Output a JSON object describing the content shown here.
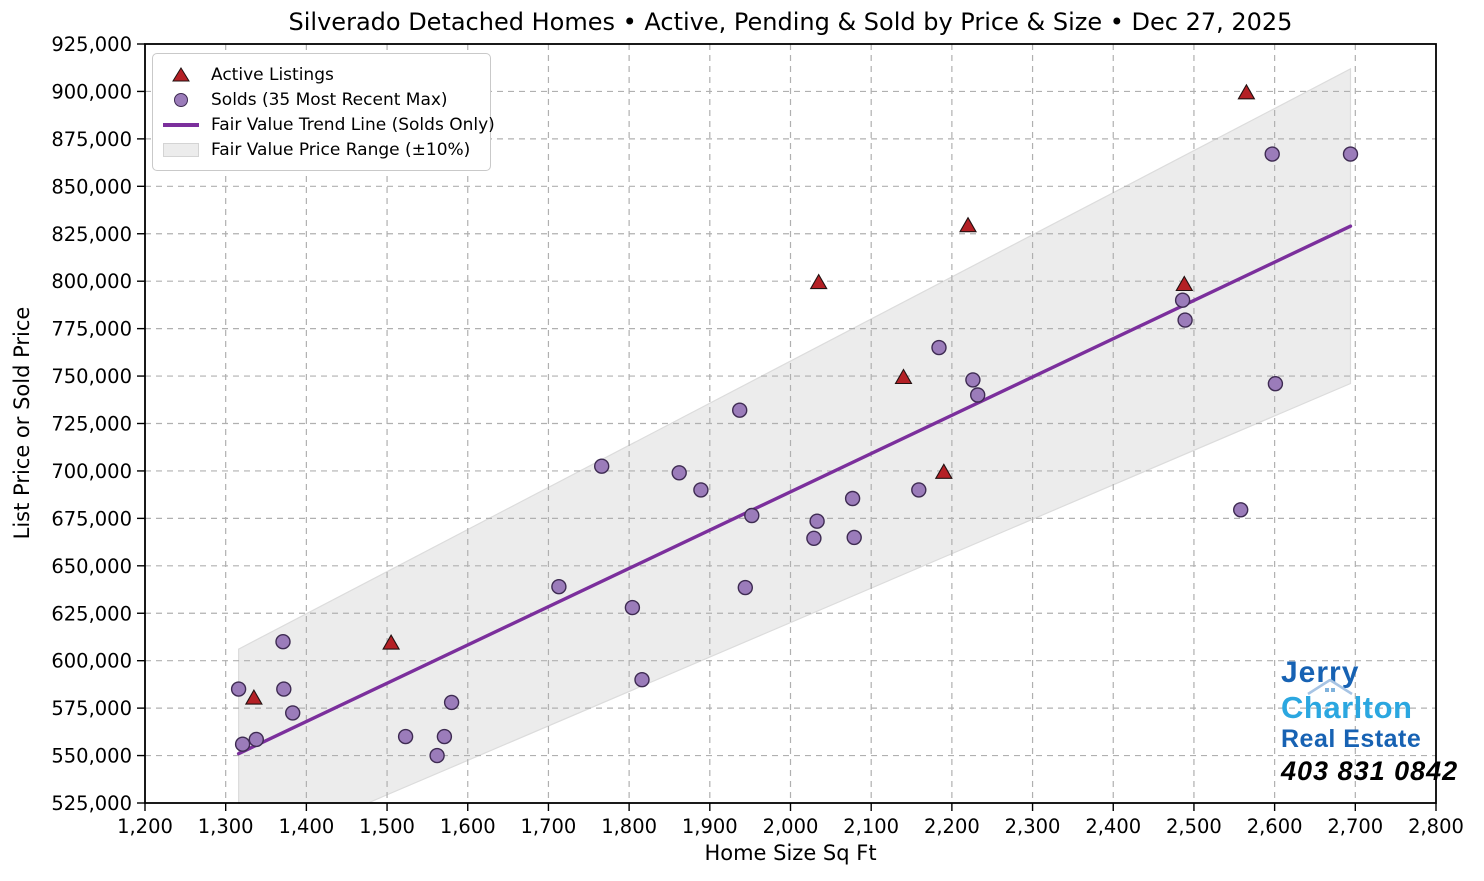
{
  "title": "Silverado Detached Homes • Active, Pending & Sold by Price & Size • Dec 27, 2025",
  "legend": {
    "active_label": "Active Listings",
    "solds_label": "Solds (35 Most Recent Max)",
    "trend_label": "Fair Value Trend Line (Solds Only)",
    "band_label": "Fair Value Price Range (±10%)"
  },
  "branding": {
    "line1": "Jerry",
    "line2": "Charlton",
    "line3": "Real Estate",
    "phone": "403 831 0842",
    "dark_blue": "#1762b3",
    "light_blue": "#2ba7e0"
  },
  "colors": {
    "active_fill": "#b42025",
    "active_edge": "#221111",
    "sold_fill": "#9b7cba",
    "sold_edge": "#3e2b52",
    "trend": "#7b2f9c",
    "band_fill": "#ececec",
    "band_edge": "#dcdcdc",
    "grid": "#b0b0b0",
    "spine": "#000000"
  },
  "chart_data": {
    "type": "scatter",
    "title": "Silverado Detached Homes • Active, Pending & Sold by Price & Size • Dec 27, 2025",
    "xlabel": "Home Size Sq Ft",
    "ylabel": "List Price or Sold Price",
    "xlim": [
      1200,
      2800
    ],
    "ylim": [
      525000,
      925000
    ],
    "x_ticks": [
      1200,
      1300,
      1400,
      1500,
      1600,
      1700,
      1800,
      1900,
      2000,
      2100,
      2200,
      2300,
      2400,
      2500,
      2600,
      2700,
      2800
    ],
    "y_ticks": [
      525000,
      550000,
      575000,
      600000,
      625000,
      650000,
      675000,
      700000,
      725000,
      750000,
      775000,
      800000,
      825000,
      850000,
      875000,
      900000,
      925000
    ],
    "grid": "dashed",
    "legend_position": "upper-left",
    "series": [
      {
        "name": "Active Listings",
        "marker": "triangle",
        "points": [
          [
            1335,
            580000
          ],
          [
            1505,
            609000
          ],
          [
            2035,
            799000
          ],
          [
            2140,
            749000
          ],
          [
            2190,
            699000
          ],
          [
            2220,
            829000
          ],
          [
            2488,
            798000
          ],
          [
            2565,
            899000
          ]
        ]
      },
      {
        "name": "Solds (35 Most Recent Max)",
        "marker": "circle",
        "points": [
          [
            1316,
            585000
          ],
          [
            1321,
            556000
          ],
          [
            1338,
            558500
          ],
          [
            1371,
            610000
          ],
          [
            1372,
            585000
          ],
          [
            1383,
            572500
          ],
          [
            1523,
            560000
          ],
          [
            1562,
            550000
          ],
          [
            1571,
            560000
          ],
          [
            1580,
            578000
          ],
          [
            1713,
            639000
          ],
          [
            1766,
            702500
          ],
          [
            1804,
            628000
          ],
          [
            1816,
            590000
          ],
          [
            1862,
            699000
          ],
          [
            1889,
            690000
          ],
          [
            1937,
            732000
          ],
          [
            1944,
            638500
          ],
          [
            1952,
            676500
          ],
          [
            2029,
            664500
          ],
          [
            2033,
            673500
          ],
          [
            2077,
            685500
          ],
          [
            2079,
            665000
          ],
          [
            2159,
            690000
          ],
          [
            2184,
            765000
          ],
          [
            2226,
            748000
          ],
          [
            2232,
            740000
          ],
          [
            2486,
            790000
          ],
          [
            2489,
            779500
          ],
          [
            2558,
            679500
          ],
          [
            2597,
            867000
          ],
          [
            2601,
            746000
          ],
          [
            2694,
            867000
          ]
        ]
      }
    ],
    "trend_line": {
      "x1": 1316,
      "y1": 551000,
      "x2": 2694,
      "y2": 829000
    },
    "fair_value_band": {
      "pct": 10,
      "x_start": 1316,
      "x_end": 2694
    }
  }
}
